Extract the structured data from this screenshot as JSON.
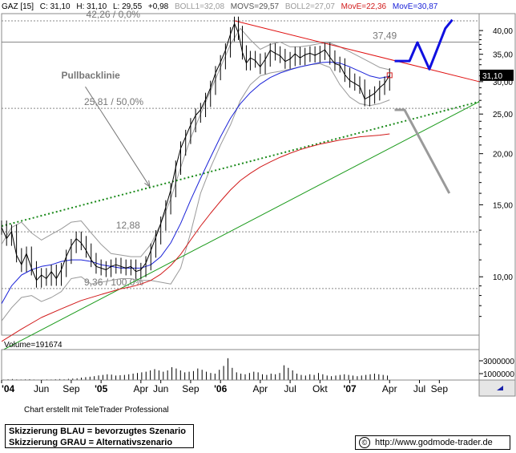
{
  "header": {
    "symbol": "GAZ [15]",
    "close": "C: 31,10",
    "high": "H: 31,10",
    "low": "L: 29,55",
    "change": "+0,98",
    "boll1": "BOLL1=32,08",
    "movs": "MOVS=29,57",
    "boll2": "BOLL2=27,07",
    "move1": "MovE=22,36",
    "move2": "MovE=30,87"
  },
  "colors": {
    "price": "#000000",
    "bollinger": "#9a9a9a",
    "ema_blue": "#1a22d8",
    "ema_red": "#d11a1a",
    "downtrend": "#e01010",
    "uptrend_green": "#1a9a1a",
    "pullback_dotted": "#1a8a1a",
    "scenario_blue": "#1010e0",
    "scenario_grey": "#9a9a9a",
    "hline": "#888888",
    "last_price_box": "#000000"
  },
  "chart_data": {
    "type": "line",
    "title": "",
    "xlabel": "",
    "ylabel": "",
    "y_scale": "log",
    "ylim": [
      7.2,
      44
    ],
    "x_tick_labels": [
      "'04",
      "Jun",
      "Sep",
      "'05",
      "Apr",
      "Jun",
      "Sep",
      "'06",
      "Apr",
      "Jul",
      "Okt",
      "'07",
      "Apr",
      "Jul",
      "Sep"
    ],
    "y_tick_labels": [
      "40,00",
      "35,00",
      "30,00",
      "25,00",
      "20,00",
      "15,00",
      "10,00"
    ],
    "y_ticks": [
      40,
      35,
      30,
      25,
      20,
      15,
      10
    ],
    "x_month_ticks": [
      0,
      4,
      7,
      10,
      14,
      16,
      19,
      22,
      26,
      29,
      32,
      35,
      39,
      42,
      44
    ],
    "x_max_month": 48,
    "last_price_label": "31,10",
    "series": [
      {
        "name": "",
        "kind": "price",
        "points": [
          [
            0,
            13.2
          ],
          [
            0.5,
            12.4
          ],
          [
            1,
            12.9
          ],
          [
            1.5,
            11.3
          ],
          [
            2,
            10.7
          ],
          [
            2.5,
            11.4
          ],
          [
            3,
            10.5
          ],
          [
            3.5,
            9.8
          ],
          [
            4,
            10.1
          ],
          [
            4.5,
            9.9
          ],
          [
            5,
            10.3
          ],
          [
            5.5,
            9.9
          ],
          [
            6,
            10.4
          ],
          [
            6.5,
            11.2
          ],
          [
            7,
            11.9
          ],
          [
            7.5,
            12.4
          ],
          [
            8,
            12.1
          ],
          [
            8.5,
            11.6
          ],
          [
            9,
            11.0
          ],
          [
            9.5,
            10.6
          ],
          [
            10,
            10.5
          ],
          [
            10.5,
            10.4
          ],
          [
            11,
            10.6
          ],
          [
            11.5,
            10.7
          ],
          [
            12,
            10.6
          ],
          [
            12.5,
            10.5
          ],
          [
            13,
            10.6
          ],
          [
            13.5,
            10.3
          ],
          [
            14,
            10.4
          ],
          [
            14.5,
            10.8
          ],
          [
            15,
            11.6
          ],
          [
            15.5,
            12.5
          ],
          [
            16,
            13.5
          ],
          [
            16.5,
            14.8
          ],
          [
            17,
            16.3
          ],
          [
            17.5,
            18.5
          ],
          [
            18,
            20.6
          ],
          [
            18.5,
            22.0
          ],
          [
            19,
            23.5
          ],
          [
            19.5,
            24.8
          ],
          [
            20,
            25.6
          ],
          [
            20.5,
            27.1
          ],
          [
            21,
            29.0
          ],
          [
            21.5,
            31.5
          ],
          [
            22,
            33.5
          ],
          [
            22.5,
            35.8
          ],
          [
            23,
            39.2
          ],
          [
            23.4,
            41.6
          ],
          [
            23.8,
            39.5
          ],
          [
            24.2,
            35.4
          ],
          [
            24.6,
            33.3
          ],
          [
            25,
            34.3
          ],
          [
            25.5,
            33.8
          ],
          [
            26,
            32.6
          ],
          [
            26.5,
            34.0
          ],
          [
            27,
            35.8
          ],
          [
            27.5,
            35.2
          ],
          [
            28,
            34.7
          ],
          [
            28.5,
            33.6
          ],
          [
            29,
            34.1
          ],
          [
            29.5,
            35.1
          ],
          [
            30,
            34.3
          ],
          [
            30.5,
            34.9
          ],
          [
            31,
            35.2
          ],
          [
            31.5,
            34.8
          ],
          [
            32,
            35.3
          ],
          [
            32.5,
            35.9
          ],
          [
            33,
            34.4
          ],
          [
            33.5,
            33.2
          ],
          [
            34,
            32.9
          ],
          [
            34.5,
            31.2
          ],
          [
            35,
            30.2
          ],
          [
            35.5,
            29.7
          ],
          [
            36,
            29.2
          ],
          [
            36.5,
            27.2
          ],
          [
            37,
            27.6
          ],
          [
            37.5,
            28.1
          ],
          [
            38,
            29.0
          ],
          [
            38.5,
            29.7
          ],
          [
            39,
            31.1
          ]
        ]
      },
      {
        "name": "MovE=30,87",
        "kind": "ema_blue",
        "points": [
          [
            0,
            8.6
          ],
          [
            1,
            9.5
          ],
          [
            2,
            10.1
          ],
          [
            3,
            10.4
          ],
          [
            4,
            10.6
          ],
          [
            5,
            10.7
          ],
          [
            6,
            10.9
          ],
          [
            7,
            11.0
          ],
          [
            8,
            11.0
          ],
          [
            9,
            10.9
          ],
          [
            10,
            10.7
          ],
          [
            11,
            10.6
          ],
          [
            12,
            10.5
          ],
          [
            13,
            10.5
          ],
          [
            14,
            10.5
          ],
          [
            15,
            10.7
          ],
          [
            16,
            11.2
          ],
          [
            17,
            12.1
          ],
          [
            18,
            13.5
          ],
          [
            19,
            15.4
          ],
          [
            20,
            17.4
          ],
          [
            21,
            19.6
          ],
          [
            22,
            22.0
          ],
          [
            23,
            24.4
          ],
          [
            24,
            26.5
          ],
          [
            25,
            28.2
          ],
          [
            26,
            29.6
          ],
          [
            27,
            30.7
          ],
          [
            28,
            31.5
          ],
          [
            29,
            32.1
          ],
          [
            30,
            32.6
          ],
          [
            31,
            33.0
          ],
          [
            32,
            33.4
          ],
          [
            33,
            33.5
          ],
          [
            34,
            33.3
          ],
          [
            35,
            32.6
          ],
          [
            36,
            31.8
          ],
          [
            37,
            31.0
          ],
          [
            38,
            30.6
          ],
          [
            39,
            30.9
          ]
        ]
      },
      {
        "name": "MovE=22,36",
        "kind": "ema_red",
        "points": [
          [
            0,
            6.95
          ],
          [
            2,
            7.45
          ],
          [
            4,
            7.95
          ],
          [
            6,
            8.35
          ],
          [
            8,
            8.75
          ],
          [
            10,
            9.05
          ],
          [
            12,
            9.35
          ],
          [
            13,
            9.45
          ],
          [
            14,
            9.6
          ],
          [
            15,
            9.8
          ],
          [
            16,
            10.15
          ],
          [
            17,
            10.65
          ],
          [
            18,
            11.35
          ],
          [
            19,
            12.3
          ],
          [
            20,
            13.3
          ],
          [
            21,
            14.3
          ],
          [
            22,
            15.3
          ],
          [
            23,
            16.3
          ],
          [
            24,
            17.2
          ],
          [
            25,
            17.9
          ],
          [
            26,
            18.55
          ],
          [
            27,
            19.1
          ],
          [
            28,
            19.6
          ],
          [
            29,
            20.05
          ],
          [
            30,
            20.45
          ],
          [
            31,
            20.8
          ],
          [
            32,
            21.1
          ],
          [
            33,
            21.35
          ],
          [
            34,
            21.6
          ],
          [
            35,
            21.8
          ],
          [
            36,
            22.0
          ],
          [
            37,
            22.1
          ],
          [
            38,
            22.2
          ],
          [
            39,
            22.36
          ]
        ]
      },
      {
        "name": "BOLL1=32,08",
        "kind": "boll_upper",
        "points": [
          [
            0,
            12.0
          ],
          [
            1,
            13.2
          ],
          [
            2,
            13.6
          ],
          [
            3,
            12.8
          ],
          [
            4,
            12.3
          ],
          [
            5,
            12.7
          ],
          [
            6,
            13.1
          ],
          [
            7,
            13.6
          ],
          [
            8,
            13.7
          ],
          [
            9,
            12.8
          ],
          [
            10,
            12.0
          ],
          [
            11,
            11.4
          ],
          [
            12,
            11.3
          ],
          [
            13,
            11.2
          ],
          [
            14,
            11.2
          ],
          [
            15,
            12.0
          ],
          [
            16,
            13.5
          ],
          [
            17,
            15.5
          ],
          [
            18,
            18.5
          ],
          [
            19,
            21.8
          ],
          [
            20,
            25.0
          ],
          [
            21,
            28.5
          ],
          [
            22,
            32.5
          ],
          [
            23,
            37.0
          ],
          [
            24,
            40.5
          ],
          [
            25,
            38.0
          ],
          [
            26,
            36.0
          ],
          [
            27,
            37.0
          ],
          [
            28,
            37.5
          ],
          [
            29,
            36.5
          ],
          [
            30,
            36.5
          ],
          [
            31,
            36.8
          ],
          [
            32,
            37.2
          ],
          [
            33,
            37.3
          ],
          [
            34,
            36.5
          ],
          [
            35,
            35.5
          ],
          [
            36,
            34.5
          ],
          [
            37,
            33.5
          ],
          [
            38,
            32.5
          ],
          [
            39,
            32.08
          ]
        ]
      },
      {
        "name": "BOLL2=27,07",
        "kind": "boll_lower",
        "points": [
          [
            0,
            7.8
          ],
          [
            1,
            8.4
          ],
          [
            2,
            8.9
          ],
          [
            3,
            9.0
          ],
          [
            4,
            8.7
          ],
          [
            5,
            8.9
          ],
          [
            6,
            9.2
          ],
          [
            7,
            9.9
          ],
          [
            8,
            10.0
          ],
          [
            9,
            9.6
          ],
          [
            10,
            9.7
          ],
          [
            11,
            9.8
          ],
          [
            12,
            9.9
          ],
          [
            13,
            9.9
          ],
          [
            14,
            9.8
          ],
          [
            15,
            9.8
          ],
          [
            16,
            9.7
          ],
          [
            17,
            9.6
          ],
          [
            18,
            10.5
          ],
          [
            19,
            12.8
          ],
          [
            20,
            16.0
          ],
          [
            21,
            18.5
          ],
          [
            22,
            21.0
          ],
          [
            23,
            23.5
          ],
          [
            24,
            27.0
          ],
          [
            25,
            29.5
          ],
          [
            26,
            31.0
          ],
          [
            27,
            31.5
          ],
          [
            28,
            31.8
          ],
          [
            29,
            32.2
          ],
          [
            30,
            32.6
          ],
          [
            31,
            33.0
          ],
          [
            32,
            33.2
          ],
          [
            33,
            32.5
          ],
          [
            34,
            29.5
          ],
          [
            35,
            27.5
          ],
          [
            36,
            26.5
          ],
          [
            37,
            26.2
          ],
          [
            38,
            26.5
          ],
          [
            39,
            27.07
          ]
        ]
      }
    ],
    "trendlines": [
      {
        "name": "",
        "kind": "downtrend",
        "points": [
          [
            23.4,
            42.26
          ],
          [
            48,
            30.0
          ]
        ]
      },
      {
        "name": "",
        "kind": "uptrend_green",
        "points": [
          [
            0,
            6.6
          ],
          [
            48,
            26.8
          ]
        ]
      },
      {
        "name": "Pullbacklinie",
        "kind": "pullback_dotted",
        "points": [
          [
            0,
            13.3
          ],
          [
            48,
            26.8
          ]
        ]
      }
    ],
    "scenarios": [
      {
        "name": "Skizzierung BLAU = bevorzugtes Szenario",
        "kind": "scenario_blue",
        "points": [
          [
            39.5,
            33.7
          ],
          [
            41,
            33.7
          ],
          [
            41.8,
            37.4
          ],
          [
            43,
            32.2
          ],
          [
            44.6,
            40.5
          ],
          [
            45.3,
            42.5
          ]
        ]
      },
      {
        "name": "Skizzierung GRAU = Alternativszenario",
        "kind": "scenario_grey",
        "points": [
          [
            39.5,
            25.6
          ],
          [
            40.5,
            25.6
          ],
          [
            45,
            16.0
          ]
        ]
      }
    ],
    "horizontal_lines": [
      {
        "value": 42.26,
        "label": "42,26 / 0,0%",
        "label_month": 8.5
      },
      {
        "value": 37.49,
        "label": "37,49",
        "label_month": 37.3
      },
      {
        "value": 25.81,
        "label": "25,81 / 50,0%",
        "label_month": 8.3
      },
      {
        "value": 12.88,
        "label": "12,88",
        "label_month": 11.5
      },
      {
        "value": 9.36,
        "label": "9,36 / 100,0%",
        "label_month": 8.3
      }
    ],
    "annotations": [
      {
        "text": "Pullbacklinie",
        "at_month": 6.0,
        "at_value": 30.5,
        "arrow_to_month": 14.9,
        "arrow_to_value": 16.6
      }
    ],
    "volume": {
      "label": "Volume=191674",
      "y_tick_labels": [
        "3000000",
        "1000000"
      ],
      "y_ticks": [
        3000000,
        1000000
      ],
      "max": 4500000,
      "bars": [
        80000,
        120000,
        150000,
        100000,
        90000,
        110000,
        130000,
        90000,
        70000,
        80000,
        100000,
        90000,
        120000,
        150000,
        110000,
        180000,
        230000,
        260000,
        380000,
        450000,
        520000,
        600000,
        720000,
        800000,
        900000,
        850000,
        700000,
        750000,
        800000,
        900000,
        1000000,
        1100000,
        1200000,
        1300000,
        1500000,
        1700000,
        1500000,
        1300000,
        1500000,
        2000000,
        1800000,
        1500000,
        1200000,
        1300000,
        1400000,
        1800000,
        1600000,
        1300000,
        1100000,
        1000000,
        1600000,
        2200000,
        3400000,
        1900000,
        1200000,
        1000000,
        900000,
        1100000,
        1300000,
        1200000,
        900000,
        800000,
        1000000,
        900000,
        1100000,
        2300000,
        1900000,
        1500000,
        1000000,
        800000,
        700000,
        900000,
        800000,
        1100000,
        900000,
        700000,
        600000,
        700000,
        800000,
        900000,
        800000,
        700000,
        600000,
        700000,
        800000,
        900000,
        1000000,
        900000,
        800000,
        700000
      ]
    }
  },
  "footer": {
    "credit": "Chart erstellt mit TeleTrader Professional",
    "legend_blue": "Skizzierung BLAU = bevorzugtes Szenario",
    "legend_grey": "Skizzierung GRAU = Alternativszenario",
    "url": "http://www.godmode-trader.de",
    "copyright_symbol": "©"
  }
}
